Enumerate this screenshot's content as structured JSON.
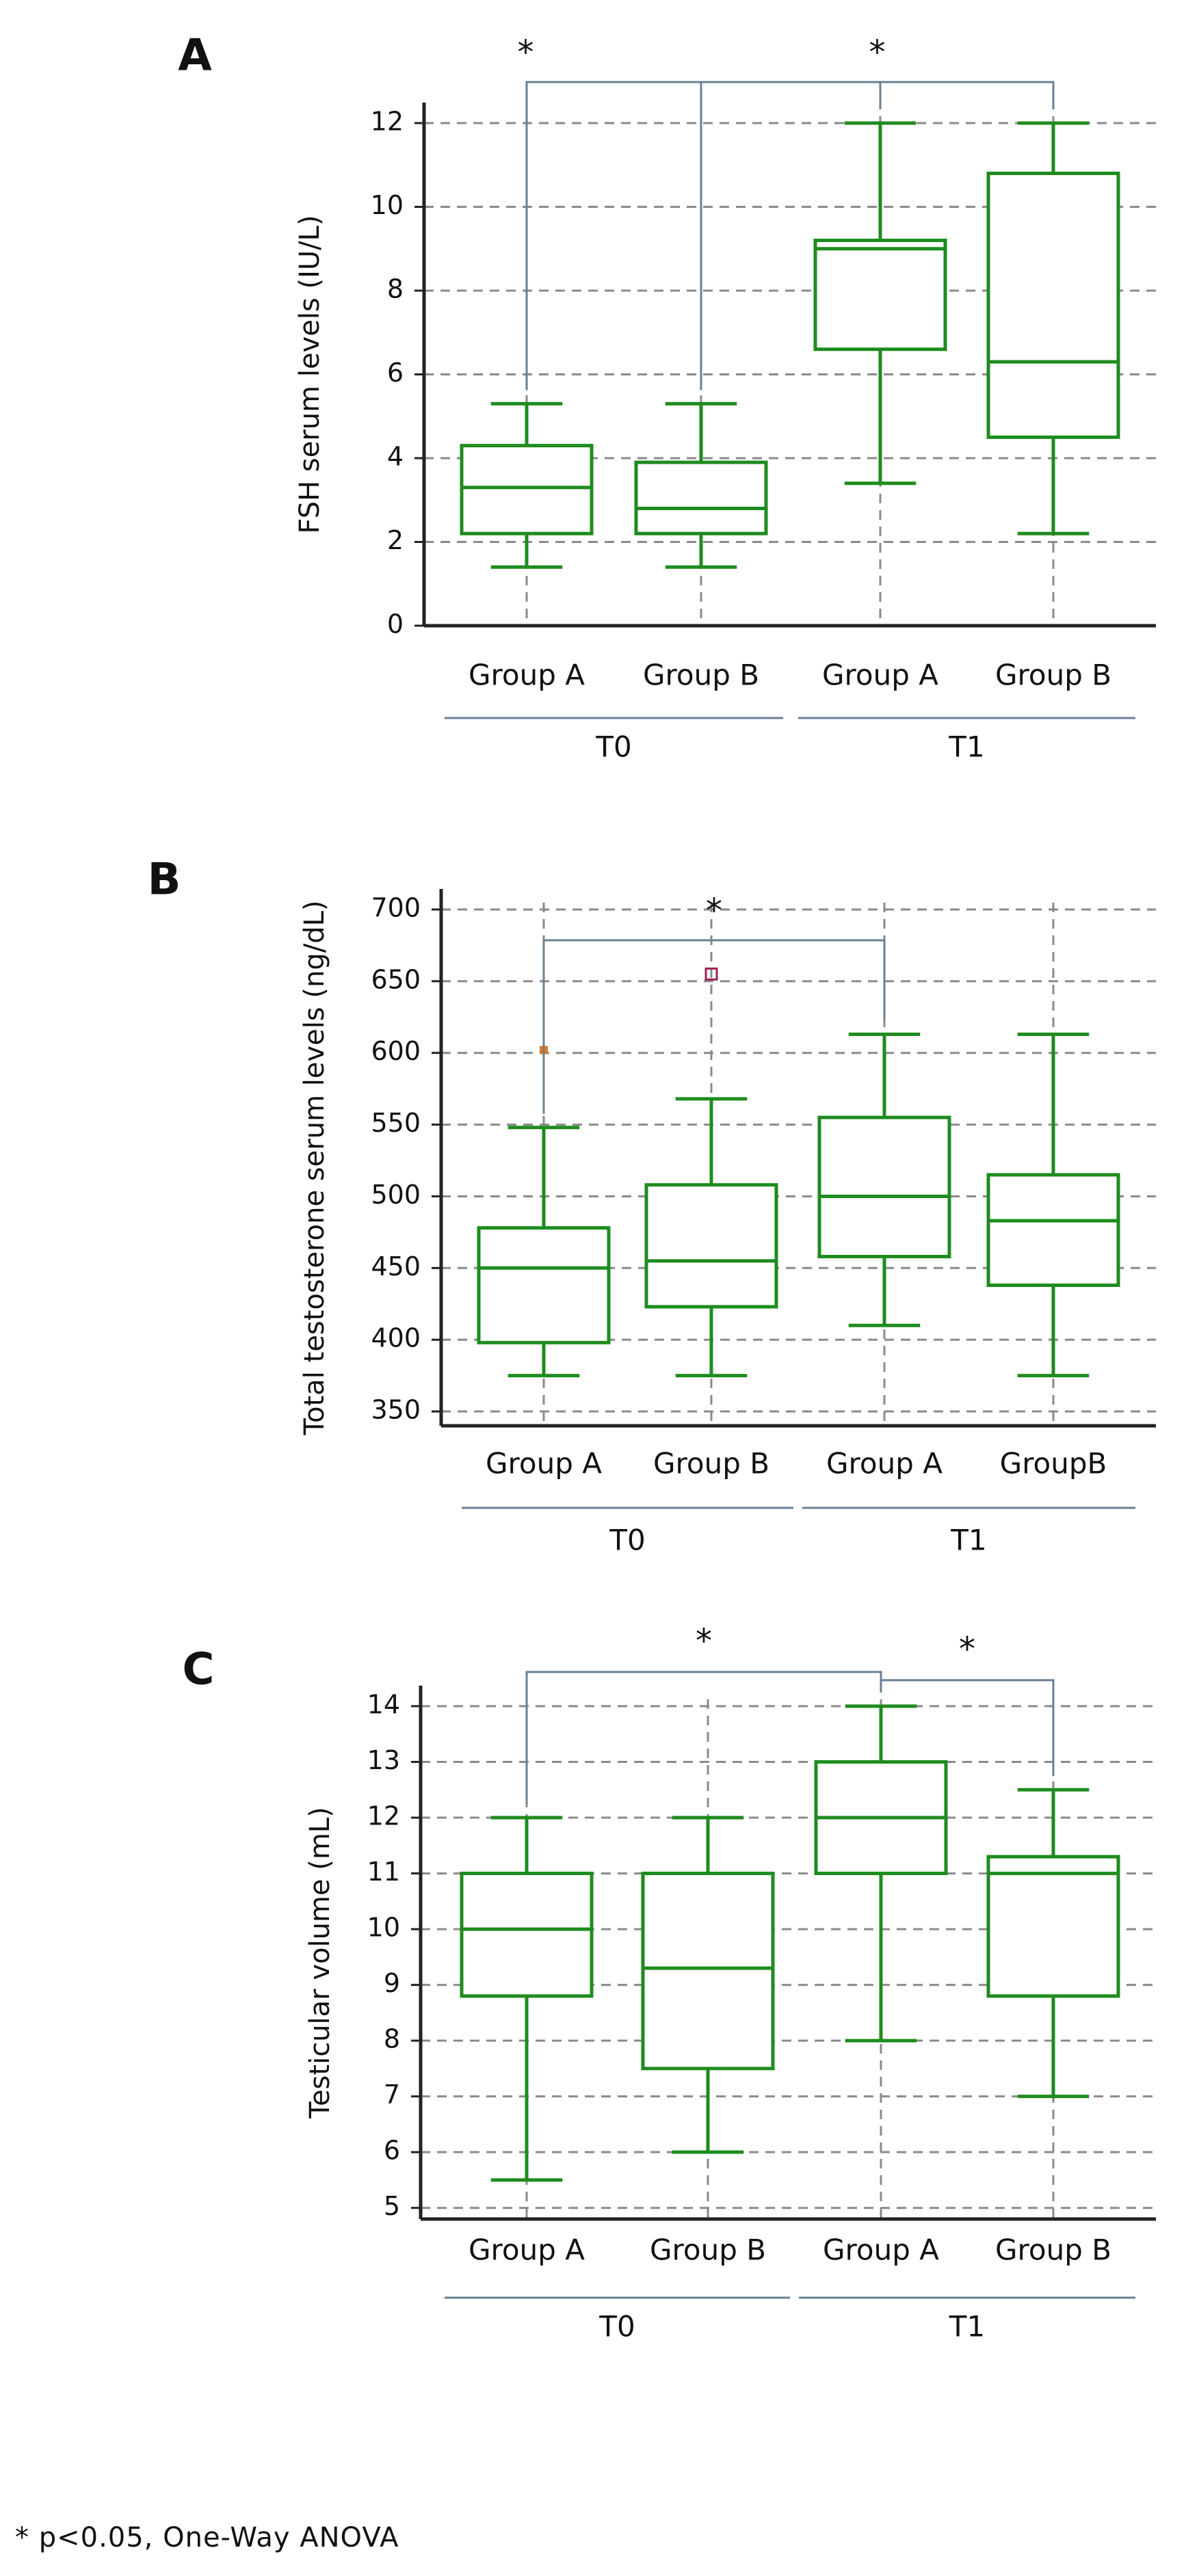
{
  "figure": {
    "footnote": "* p<0.05, One-Way ANOVA",
    "colors": {
      "box": "#1e8c1e",
      "axis": "#222222",
      "grid": "#8a8a8a",
      "bracket": "#6a7f94",
      "outlier_orange": "#e07820",
      "outlier_magenta": "#a0205a"
    }
  },
  "chart_data": [
    {
      "panel_label": "A",
      "type": "box",
      "ylabel": "FSH serum levels (IU/L)",
      "ylim": [
        0,
        12
      ],
      "yticks": [
        0,
        2,
        4,
        6,
        8,
        10,
        12
      ],
      "categories": [
        "Group A",
        "Group B",
        "Group A",
        "Group B"
      ],
      "groups": [
        {
          "label": "T0",
          "span": [
            0,
            1
          ]
        },
        {
          "label": "T1",
          "span": [
            2,
            3
          ]
        }
      ],
      "boxes": [
        {
          "min": 1.4,
          "q1": 2.2,
          "median": 3.3,
          "q3": 4.3,
          "max": 5.3
        },
        {
          "min": 1.4,
          "q1": 2.2,
          "median": 2.8,
          "q3": 3.9,
          "max": 5.3
        },
        {
          "min": 3.4,
          "q1": 6.6,
          "median": 9.0,
          "q3": 9.2,
          "max": 12.0
        },
        {
          "min": 2.2,
          "q1": 4.5,
          "median": 6.3,
          "q3": 10.8,
          "max": 12.0
        }
      ],
      "outliers": [],
      "significance": [
        {
          "from": 0,
          "to": 2,
          "label": "*"
        },
        {
          "from": 1,
          "to": 3,
          "label": "*"
        }
      ]
    },
    {
      "panel_label": "B",
      "type": "box",
      "ylabel": "Total testosterone serum levels (ng/dL)",
      "ylim": [
        340,
        700
      ],
      "yticks": [
        350,
        400,
        450,
        500,
        550,
        600,
        650,
        700
      ],
      "categories": [
        "Group A",
        "Group B",
        "Group A",
        "GroupB"
      ],
      "groups": [
        {
          "label": "T0",
          "span": [
            0,
            1
          ]
        },
        {
          "label": "T1",
          "span": [
            2,
            3
          ]
        }
      ],
      "boxes": [
        {
          "min": 375,
          "q1": 398,
          "median": 450,
          "q3": 478,
          "max": 548
        },
        {
          "min": 375,
          "q1": 423,
          "median": 455,
          "q3": 508,
          "max": 568
        },
        {
          "min": 410,
          "q1": 458,
          "median": 500,
          "q3": 555,
          "max": 613
        },
        {
          "min": 375,
          "q1": 438,
          "median": 483,
          "q3": 515,
          "max": 613
        }
      ],
      "outliers": [
        {
          "box": 0,
          "value": 602,
          "color": "orange"
        },
        {
          "box": 1,
          "value": 655,
          "color": "magenta"
        }
      ],
      "significance": [
        {
          "from": 0,
          "to": 2,
          "label": "*"
        }
      ]
    },
    {
      "panel_label": "C",
      "type": "box",
      "ylabel": "Testicular volume (mL)",
      "ylim": [
        4.8,
        14
      ],
      "yticks": [
        5,
        6,
        7,
        8,
        9,
        10,
        11,
        12,
        13,
        14
      ],
      "categories": [
        "Group A",
        "Group B",
        "Group A",
        "Group B"
      ],
      "groups": [
        {
          "label": "T0",
          "span": [
            0,
            1
          ]
        },
        {
          "label": "T1",
          "span": [
            2,
            3
          ]
        }
      ],
      "boxes": [
        {
          "min": 5.5,
          "q1": 8.8,
          "median": 10.0,
          "q3": 11.0,
          "max": 12.0
        },
        {
          "min": 6.0,
          "q1": 7.5,
          "median": 9.3,
          "q3": 11.0,
          "max": 12.0
        },
        {
          "min": 8.0,
          "q1": 11.0,
          "median": 12.0,
          "q3": 13.0,
          "max": 14.0
        },
        {
          "min": 7.0,
          "q1": 8.8,
          "median": 11.0,
          "q3": 11.3,
          "max": 12.5
        }
      ],
      "outliers": [],
      "significance": [
        {
          "from": 0,
          "to": 2,
          "label": "*"
        },
        {
          "from": 2,
          "to": 3,
          "label": "*"
        }
      ]
    }
  ]
}
